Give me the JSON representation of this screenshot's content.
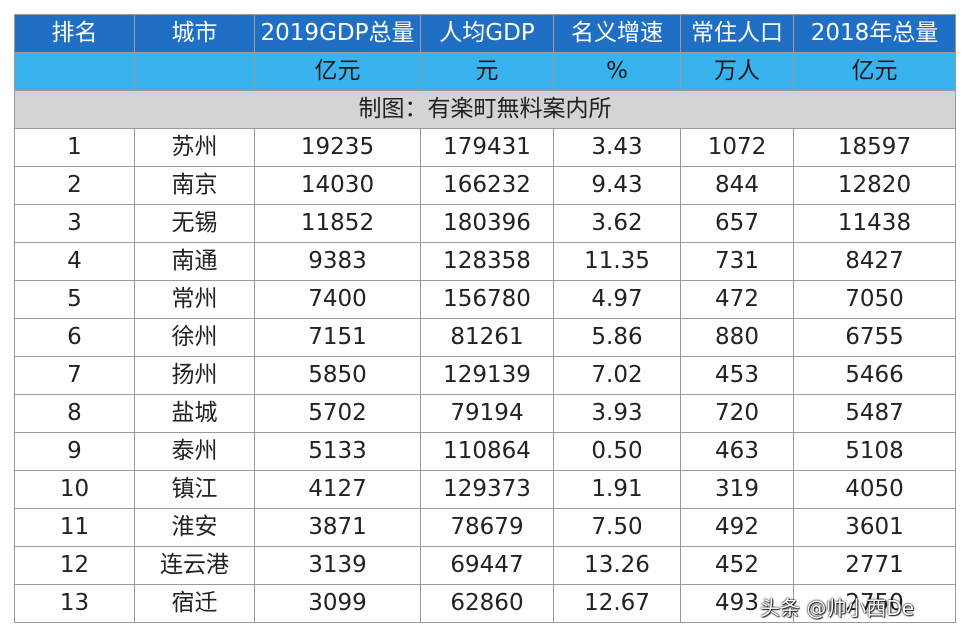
{
  "table": {
    "headers": [
      "排名",
      "城市",
      "2019GDP总量",
      "人均GDP",
      "名义增速",
      "常住人口",
      "2018年总量"
    ],
    "units": [
      "",
      "",
      "亿元",
      "元",
      "%",
      "万人",
      "亿元"
    ],
    "credit": "制图：有楽町無料案内所",
    "rows": [
      [
        "1",
        "苏州",
        "19235",
        "179431",
        "3.43",
        "1072",
        "18597"
      ],
      [
        "2",
        "南京",
        "14030",
        "166232",
        "9.43",
        "844",
        "12820"
      ],
      [
        "3",
        "无锡",
        "11852",
        "180396",
        "3.62",
        "657",
        "11438"
      ],
      [
        "4",
        "南通",
        "9383",
        "128358",
        "11.35",
        "731",
        "8427"
      ],
      [
        "5",
        "常州",
        "7400",
        "156780",
        "4.97",
        "472",
        "7050"
      ],
      [
        "6",
        "徐州",
        "7151",
        "81261",
        "5.86",
        "880",
        "6755"
      ],
      [
        "7",
        "扬州",
        "5850",
        "129139",
        "7.02",
        "453",
        "5466"
      ],
      [
        "8",
        "盐城",
        "5702",
        "79194",
        "3.93",
        "720",
        "5487"
      ],
      [
        "9",
        "泰州",
        "5133",
        "110864",
        "0.50",
        "463",
        "5108"
      ],
      [
        "10",
        "镇江",
        "4127",
        "129373",
        "1.91",
        "319",
        "4050"
      ],
      [
        "11",
        "淮安",
        "3871",
        "78679",
        "7.50",
        "492",
        "3601"
      ],
      [
        "12",
        "连云港",
        "3139",
        "69447",
        "13.26",
        "452",
        "2771"
      ],
      [
        "13",
        "宿迁",
        "3099",
        "62860",
        "12.67",
        "493",
        "2750"
      ]
    ]
  },
  "watermark": "头条 @帅小西De",
  "colors": {
    "header_bg": "#1f6fc5",
    "unit_bg": "#39b3ee",
    "credit_bg": "#d4d4d4",
    "border": "#9a9a9a"
  }
}
